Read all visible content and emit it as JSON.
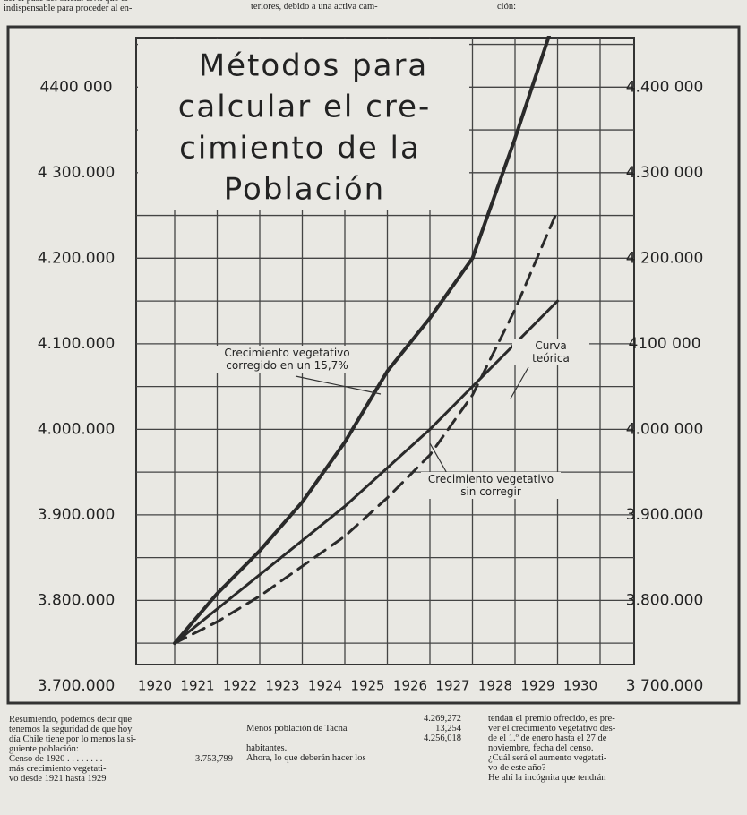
{
  "chart_data": {
    "type": "line",
    "title": [
      "Métodos para",
      "calcular el cre-",
      "cimiento de la",
      "Población"
    ],
    "x": [
      1920,
      1921,
      1922,
      1923,
      1924,
      1925,
      1926,
      1927,
      1928,
      1929
    ],
    "xlim": [
      1919,
      1931
    ],
    "xticks": [
      1920,
      1921,
      1922,
      1923,
      1924,
      1925,
      1926,
      1927,
      1928,
      1929,
      1930
    ],
    "ylim": [
      3680000,
      4460000
    ],
    "yticks": [
      {
        "value": 3700000,
        "label": "3.700.000"
      },
      {
        "value": 3800000,
        "label": "3.800.000"
      },
      {
        "value": 3900000,
        "label": "3.900.000"
      },
      {
        "value": 4000000,
        "label": "4.000.000"
      },
      {
        "value": 4100000,
        "label": "4.100.000"
      },
      {
        "value": 4200000,
        "label": "4.200.000"
      },
      {
        "value": 4300000,
        "label": "4 300.000"
      },
      {
        "value": 4400000,
        "label": "4400 000"
      }
    ],
    "minor_yticks": [
      3750000,
      3850000,
      3950000,
      4050000,
      4150000,
      4250000,
      4350000,
      4450000
    ],
    "y2lim": [
      3680000,
      4460000
    ],
    "y2ticks": [
      {
        "value": 3700000,
        "label": "3 700.000"
      },
      {
        "value": 3800000,
        "label": "3.800.000"
      },
      {
        "value": 3900000,
        "label": "3.900.000"
      },
      {
        "value": 4000000,
        "label": "4.000 000"
      },
      {
        "value": 4100000,
        "label": "4100 000"
      },
      {
        "value": 4200000,
        "label": "4 200.000"
      },
      {
        "value": 4300000,
        "label": "4.300 000"
      },
      {
        "value": 4400000,
        "label": "4.400 000"
      }
    ],
    "grid": true,
    "series": [
      {
        "name": "Crecimiento vegetativo corregido en un 15,7%",
        "color": "#2a2a2a",
        "width": 4,
        "dash": false,
        "values": [
          3750000,
          3808000,
          3858000,
          3915000,
          3985000,
          4068000,
          4130000,
          4200000,
          4340000,
          4490000
        ]
      },
      {
        "name": "Curva teórica",
        "color": "#2a2a2a",
        "width": 3,
        "dash": false,
        "values": [
          3750000,
          3790000,
          3830000,
          3870000,
          3910000,
          3955000,
          4000000,
          4050000,
          4100000,
          4150000
        ]
      },
      {
        "name": "Crecimiento vegetativo sin corregir",
        "color": "#2a2a2a",
        "width": 3,
        "dash": true,
        "values": [
          3750000,
          3775000,
          3805000,
          3840000,
          3875000,
          3920000,
          3970000,
          4040000,
          4140000,
          4256000
        ]
      }
    ]
  },
  "text": {
    "top": [
      [
        "del el pase del oficial civil que el",
        "indispensable para proceder al en-"
      ],
      [
        "teriores, debido a una activa cam-"
      ],
      [
        "ción:"
      ]
    ],
    "bottom": [
      [
        "Resumiendo, podemos decir que",
        "tenemos la seguridad de que hoy",
        "día Chile tiene por lo menos la si-",
        "guiente población:",
        [
          "Censo de 1920 . . . . . . . .",
          "3.753,799"
        ],
        "más crecimiento vegetati-",
        "vo desde 1921 hasta 1929"
      ],
      [
        [
          "",
          "4.269,272"
        ],
        [
          "Menos población de Tacna",
          "13,254"
        ],
        [
          "",
          "4.256,018"
        ],
        "habitantes.",
        "Ahora, lo que deberán hacer los"
      ],
      [
        "tendan el premio ofrecido, es pre-",
        "ver el crecimiento vegetativo des-",
        "de el 1.º de enero hasta el 27 de",
        "noviembre, fecha del censo.",
        "¿Cuál será el aumento vegetati-",
        "vo de este año?",
        "He ahí la incógnita que tendrán"
      ]
    ]
  }
}
